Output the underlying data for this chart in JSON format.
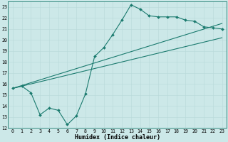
{
  "line1_x": [
    0,
    1,
    2,
    3,
    4,
    5,
    6,
    7,
    8,
    9,
    10,
    11,
    12,
    13,
    14,
    15,
    16,
    17,
    18,
    19,
    20,
    21,
    22,
    23
  ],
  "line1_y": [
    15.6,
    15.8,
    15.2,
    13.2,
    13.8,
    13.6,
    12.3,
    13.1,
    15.1,
    18.5,
    19.3,
    20.5,
    21.8,
    23.2,
    22.8,
    22.2,
    22.1,
    22.1,
    22.1,
    21.8,
    21.7,
    21.2,
    21.1,
    21.0
  ],
  "line2_x": [
    0,
    23
  ],
  "line2_y": [
    15.6,
    21.5
  ],
  "line3_x": [
    0,
    23
  ],
  "line3_y": [
    15.6,
    20.2
  ],
  "line_color": "#1a7a6e",
  "bg_color": "#cce8e8",
  "grid_major_color": "#b8d8d8",
  "grid_minor_color": "#c8e0e0",
  "xlim": [
    -0.5,
    23.5
  ],
  "ylim": [
    12,
    23.5
  ],
  "yticks": [
    12,
    13,
    14,
    15,
    16,
    17,
    18,
    19,
    20,
    21,
    22,
    23
  ],
  "xticks": [
    0,
    1,
    2,
    3,
    4,
    5,
    6,
    7,
    8,
    9,
    10,
    11,
    12,
    13,
    14,
    15,
    16,
    17,
    18,
    19,
    20,
    21,
    22,
    23
  ],
  "xlabel": "Humidex (Indice chaleur)",
  "xlabel_fontsize": 6.0,
  "tick_fontsize": 4.8,
  "marker_size": 2.0,
  "line_width": 0.8
}
